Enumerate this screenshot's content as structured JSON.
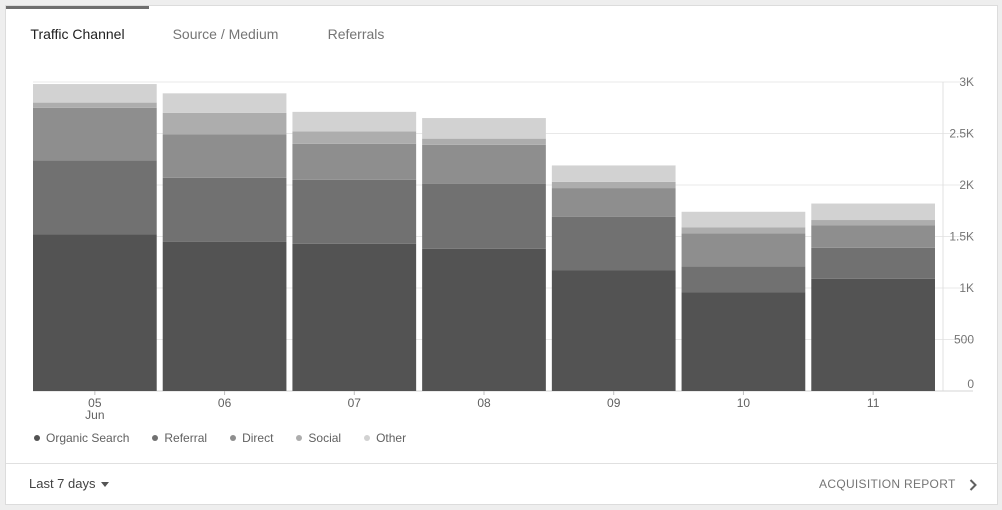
{
  "tabs": [
    {
      "label": "Traffic Channel",
      "active": true
    },
    {
      "label": "Source / Medium",
      "active": false
    },
    {
      "label": "Referrals",
      "active": false
    }
  ],
  "chart_data": {
    "type": "bar",
    "stacked": true,
    "categories": [
      "05",
      "06",
      "07",
      "08",
      "09",
      "10",
      "11"
    ],
    "category_sublabels": [
      "Jun",
      "",
      "",
      "",
      "",
      "",
      ""
    ],
    "series": [
      {
        "name": "Organic Search",
        "color": "#535353",
        "values": [
          1520,
          1450,
          1430,
          1380,
          1170,
          960,
          1090
        ]
      },
      {
        "name": "Referral",
        "color": "#717171",
        "values": [
          720,
          620,
          620,
          630,
          520,
          250,
          300
        ]
      },
      {
        "name": "Direct",
        "color": "#8e8e8e",
        "values": [
          510,
          420,
          350,
          380,
          280,
          320,
          220
        ]
      },
      {
        "name": "Social",
        "color": "#adadad",
        "values": [
          50,
          210,
          120,
          60,
          60,
          60,
          50
        ]
      },
      {
        "name": "Other",
        "color": "#d2d2d2",
        "values": [
          180,
          190,
          190,
          200,
          160,
          150,
          160
        ]
      }
    ],
    "yticks": [
      "0",
      "500",
      "1K",
      "1.5K",
      "2K",
      "2.5K",
      "3K"
    ],
    "ylim": [
      0,
      3000
    ],
    "y_axis_position": "right",
    "grid": true,
    "legend_position": "bottom-left"
  },
  "footer": {
    "date_range": "Last 7 days",
    "report_link": "ACQUISITION REPORT"
  },
  "icons": {
    "date_dropdown": "caret-down-icon",
    "report_link": "chevron-right-icon"
  }
}
